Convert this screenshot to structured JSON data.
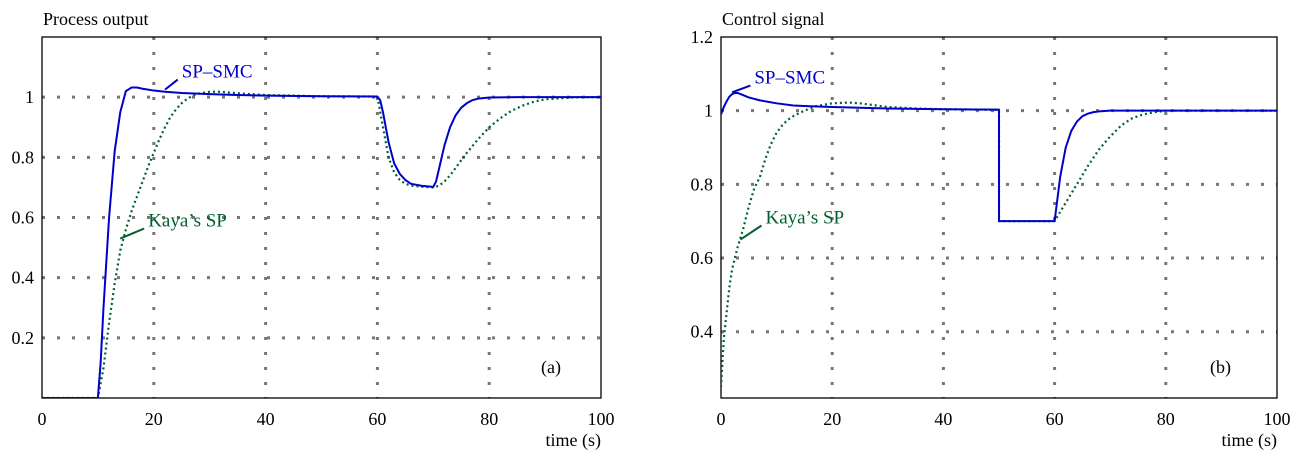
{
  "chart_data": [
    {
      "type": "line",
      "title": "Process output",
      "xlabel": "time (s)",
      "ylabel": "",
      "panel_label": "(a)",
      "xlim": [
        0,
        100
      ],
      "ylim": [
        0,
        1.2
      ],
      "xticks": [
        0,
        20,
        40,
        60,
        80,
        100
      ],
      "yticks": [
        0.2,
        0.4,
        0.6,
        0.8,
        1
      ],
      "grid": true,
      "series": [
        {
          "name": "SP–SMC",
          "style": "solid",
          "color": "#0000cc",
          "x": [
            0,
            10,
            10.5,
            11,
            12,
            13,
            14,
            15,
            16,
            17,
            18,
            20,
            22,
            25,
            30,
            35,
            40,
            50,
            60,
            60.5,
            61,
            62,
            63,
            64,
            65,
            66,
            68,
            70,
            70.5,
            71,
            72,
            73,
            74,
            75,
            76,
            77,
            78,
            80,
            85,
            90,
            100
          ],
          "y": [
            0,
            0,
            0.12,
            0.3,
            0.6,
            0.82,
            0.95,
            1.02,
            1.032,
            1.032,
            1.028,
            1.022,
            1.018,
            1.014,
            1.01,
            1.007,
            1.005,
            1.003,
            1.002,
            0.99,
            0.95,
            0.85,
            0.78,
            0.745,
            0.725,
            0.712,
            0.705,
            0.702,
            0.72,
            0.76,
            0.84,
            0.9,
            0.94,
            0.965,
            0.98,
            0.99,
            0.995,
            0.999,
            1.0,
            1.0,
            1.0
          ]
        },
        {
          "name": "Kaya’s SP",
          "style": "dotted",
          "color": "#006030",
          "x": [
            0,
            10,
            11,
            12,
            13,
            14,
            15,
            16,
            17,
            18,
            19,
            20,
            21,
            22,
            23,
            24,
            25,
            26,
            27,
            28,
            30,
            32,
            35,
            40,
            50,
            60,
            61,
            62,
            63,
            64,
            65,
            66,
            68,
            70,
            71,
            72,
            73,
            74,
            75,
            76,
            78,
            80,
            82,
            84,
            86,
            88,
            90,
            95,
            100
          ],
          "y": [
            0,
            0,
            0.1,
            0.25,
            0.38,
            0.49,
            0.56,
            0.62,
            0.67,
            0.72,
            0.77,
            0.815,
            0.86,
            0.9,
            0.935,
            0.96,
            0.98,
            0.995,
            1.005,
            1.012,
            1.018,
            1.018,
            1.013,
            1.007,
            1.003,
            1.002,
            0.9,
            0.8,
            0.75,
            0.725,
            0.712,
            0.706,
            0.702,
            0.7,
            0.705,
            0.72,
            0.74,
            0.765,
            0.79,
            0.815,
            0.86,
            0.9,
            0.93,
            0.955,
            0.972,
            0.985,
            0.993,
            0.999,
            1.0
          ]
        }
      ],
      "annotations": [
        {
          "text": "SP–SMC",
          "series": 0,
          "at_x": 22,
          "at_y": 1.025,
          "text_x": 25,
          "text_y": 1.085
        },
        {
          "text": "Kaya’s SP",
          "series": 1,
          "at_x": 14,
          "at_y": 0.53,
          "text_x": 19,
          "text_y": 0.59
        }
      ]
    },
    {
      "type": "line",
      "title": "Control signal",
      "xlabel": "time (s)",
      "ylabel": "",
      "panel_label": "(b)",
      "xlim": [
        0,
        100
      ],
      "ylim": [
        0.22,
        1.2
      ],
      "xticks": [
        0,
        20,
        40,
        60,
        80,
        100
      ],
      "yticks": [
        0.4,
        0.6,
        0.8,
        1,
        1.2
      ],
      "grid": true,
      "series": [
        {
          "name": "SP–SMC",
          "style": "solid",
          "color": "#0000cc",
          "x": [
            0,
            0.5,
            1,
            1.5,
            2,
            2.5,
            3,
            4,
            5,
            7,
            10,
            13,
            16,
            20,
            25,
            30,
            40,
            50,
            50.001,
            60,
            60.5,
            61,
            62,
            63,
            64,
            65,
            66,
            67,
            68,
            70,
            75,
            80,
            90,
            100
          ],
          "y": [
            0.99,
            1.01,
            1.025,
            1.038,
            1.045,
            1.048,
            1.048,
            1.042,
            1.036,
            1.028,
            1.02,
            1.014,
            1.012,
            1.01,
            1.008,
            1.006,
            1.004,
            1.003,
            0.7,
            0.7,
            0.76,
            0.82,
            0.9,
            0.945,
            0.97,
            0.985,
            0.992,
            0.996,
            0.998,
            1.0,
            1.0,
            1.0,
            1.0,
            1.0
          ]
        },
        {
          "name": "Kaya’s SP",
          "style": "dotted",
          "color": "#006030",
          "x": [
            0,
            0.5,
            1,
            1.5,
            2,
            3,
            4,
            5,
            6,
            7,
            8,
            9,
            10,
            11,
            12,
            13,
            14,
            15,
            17,
            20,
            23,
            25,
            28,
            30,
            35,
            40,
            50,
            50.001,
            60,
            62,
            64,
            66,
            68,
            70,
            72,
            74,
            76,
            78,
            80,
            85,
            100
          ],
          "y": [
            0.25,
            0.38,
            0.45,
            0.52,
            0.57,
            0.63,
            0.68,
            0.74,
            0.79,
            0.82,
            0.87,
            0.91,
            0.94,
            0.96,
            0.975,
            0.985,
            0.993,
            1.0,
            1.012,
            1.02,
            1.022,
            1.02,
            1.014,
            1.01,
            1.006,
            1.004,
            1.002,
            0.7,
            0.7,
            0.75,
            0.8,
            0.85,
            0.895,
            0.93,
            0.96,
            0.98,
            0.99,
            0.996,
            1.0,
            1.0,
            1.0
          ]
        }
      ],
      "annotations": [
        {
          "text": "SP–SMC",
          "series": 0,
          "at_x": 2,
          "at_y": 1.05,
          "text_x": 6,
          "text_y": 1.09
        },
        {
          "text": "Kaya’s SP",
          "series": 1,
          "at_x": 3.5,
          "at_y": 0.65,
          "text_x": 8,
          "text_y": 0.71
        }
      ]
    }
  ]
}
